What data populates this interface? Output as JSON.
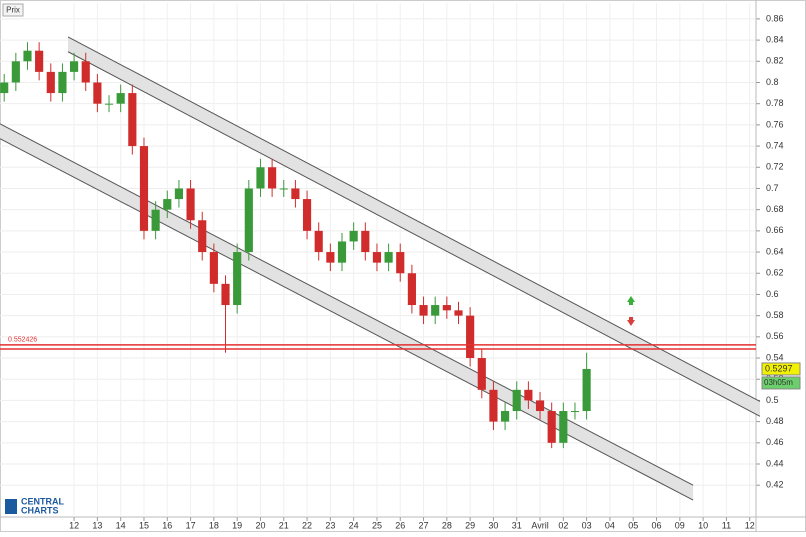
{
  "chart_data": {
    "type": "candlestick",
    "title": "Prix",
    "x": [
      -3,
      -2.5,
      -2,
      -1.5,
      -1,
      -0.5,
      0,
      0.5,
      1,
      1.5,
      2,
      2.5,
      3,
      3.5,
      4,
      4.5,
      5,
      5.5,
      6,
      6.5,
      7,
      7.5,
      8,
      8.5,
      9,
      9.5,
      10,
      10.5,
      11,
      11.5,
      12,
      12.5,
      13,
      13.5,
      14,
      14.5,
      15,
      15.5,
      16,
      16.5,
      17,
      17.5,
      18,
      18.5,
      19,
      19.5,
      20,
      20.5,
      21,
      21.5,
      22
    ],
    "open": [
      0.79,
      0.8,
      0.82,
      0.83,
      0.81,
      0.79,
      0.81,
      0.82,
      0.8,
      0.78,
      0.78,
      0.79,
      0.74,
      0.66,
      0.68,
      0.69,
      0.7,
      0.67,
      0.64,
      0.61,
      0.59,
      0.64,
      0.7,
      0.72,
      0.7,
      0.7,
      0.69,
      0.66,
      0.64,
      0.63,
      0.65,
      0.66,
      0.64,
      0.63,
      0.64,
      0.62,
      0.59,
      0.58,
      0.59,
      0.585,
      0.58,
      0.54,
      0.51,
      0.48,
      0.49,
      0.51,
      0.5,
      0.49,
      0.46,
      0.49,
      0.49
    ],
    "high": [
      0.808,
      0.828,
      0.838,
      0.838,
      0.818,
      0.818,
      0.828,
      0.828,
      0.808,
      0.788,
      0.798,
      0.798,
      0.748,
      0.688,
      0.698,
      0.708,
      0.708,
      0.678,
      0.648,
      0.618,
      0.648,
      0.708,
      0.728,
      0.728,
      0.708,
      0.708,
      0.698,
      0.668,
      0.648,
      0.658,
      0.668,
      0.668,
      0.648,
      0.648,
      0.648,
      0.628,
      0.598,
      0.598,
      0.598,
      0.593,
      0.588,
      0.548,
      0.518,
      0.498,
      0.518,
      0.518,
      0.508,
      0.498,
      0.498,
      0.498,
      0.545
    ],
    "low": [
      0.782,
      0.792,
      0.812,
      0.802,
      0.782,
      0.782,
      0.802,
      0.792,
      0.772,
      0.772,
      0.772,
      0.732,
      0.652,
      0.652,
      0.672,
      0.682,
      0.662,
      0.632,
      0.602,
      0.545,
      0.582,
      0.632,
      0.692,
      0.692,
      0.692,
      0.682,
      0.652,
      0.632,
      0.622,
      0.622,
      0.642,
      0.632,
      0.622,
      0.622,
      0.612,
      0.582,
      0.572,
      0.572,
      0.577,
      0.572,
      0.532,
      0.502,
      0.472,
      0.472,
      0.482,
      0.492,
      0.482,
      0.455,
      0.455,
      0.482,
      0.482
    ],
    "close": [
      0.8,
      0.82,
      0.83,
      0.81,
      0.79,
      0.81,
      0.82,
      0.8,
      0.78,
      0.78,
      0.79,
      0.74,
      0.66,
      0.68,
      0.69,
      0.7,
      0.67,
      0.64,
      0.61,
      0.59,
      0.64,
      0.7,
      0.72,
      0.7,
      0.7,
      0.69,
      0.66,
      0.64,
      0.63,
      0.65,
      0.66,
      0.64,
      0.63,
      0.64,
      0.62,
      0.59,
      0.58,
      0.59,
      0.585,
      0.58,
      0.54,
      0.51,
      0.48,
      0.49,
      0.51,
      0.5,
      0.49,
      0.46,
      0.49,
      0.49,
      0.5297
    ],
    "up_color": "#3a9a3a",
    "down_color": "#d02c2c",
    "xlim": [
      -3.18,
      29.27
    ],
    "ylim": [
      0.39,
      0.875
    ],
    "yticks": [
      0.86,
      0.84,
      0.82,
      0.8,
      0.78,
      0.76,
      0.74,
      0.72,
      0.7,
      0.68,
      0.66,
      0.64,
      0.62,
      0.6,
      0.58,
      0.56,
      0.54,
      0.52,
      0.5,
      0.48,
      0.46,
      0.44,
      0.42
    ],
    "xticks": [
      {
        "value": 0,
        "label": "12"
      },
      {
        "value": 1,
        "label": "13"
      },
      {
        "value": 2,
        "label": "14"
      },
      {
        "value": 3,
        "label": "15"
      },
      {
        "value": 4,
        "label": "16"
      },
      {
        "value": 5,
        "label": "17"
      },
      {
        "value": 6,
        "label": "18"
      },
      {
        "value": 7,
        "label": "19"
      },
      {
        "value": 8,
        "label": "20"
      },
      {
        "value": 9,
        "label": "21"
      },
      {
        "value": 10,
        "label": "22"
      },
      {
        "value": 11,
        "label": "23"
      },
      {
        "value": 12,
        "label": "24"
      },
      {
        "value": 13,
        "label": "25"
      },
      {
        "value": 14,
        "label": "26"
      },
      {
        "value": 15,
        "label": "27"
      },
      {
        "value": 16,
        "label": "28"
      },
      {
        "value": 17,
        "label": "29"
      },
      {
        "value": 18,
        "label": "30"
      },
      {
        "value": 19,
        "label": "31"
      },
      {
        "value": 20,
        "label": "Avril"
      },
      {
        "value": 21,
        "label": "02"
      },
      {
        "value": 22,
        "label": "03"
      },
      {
        "value": 23,
        "label": "04"
      },
      {
        "value": 24,
        "label": "05"
      },
      {
        "value": 25,
        "label": "06"
      },
      {
        "value": 26,
        "label": "09"
      },
      {
        "value": 27,
        "label": "10"
      },
      {
        "value": 28,
        "label": "11"
      },
      {
        "value": 29,
        "label": "12"
      }
    ],
    "grid": true,
    "channels": [
      {
        "x": [
          -0.26,
          29.44
        ],
        "upper": [
          0.843,
          0.499
        ],
        "lower": [
          0.829,
          0.485
        ]
      },
      {
        "x": [
          -3.18,
          26.57
        ],
        "upper": [
          0.761,
          0.42
        ],
        "lower": [
          0.747,
          0.406
        ]
      }
    ],
    "levels": [
      0.552426,
      0.5485
    ],
    "level_color": "#e53030",
    "countdown": "03h05m",
    "brand": [
      "CENTRAL",
      "CHARTS"
    ]
  }
}
